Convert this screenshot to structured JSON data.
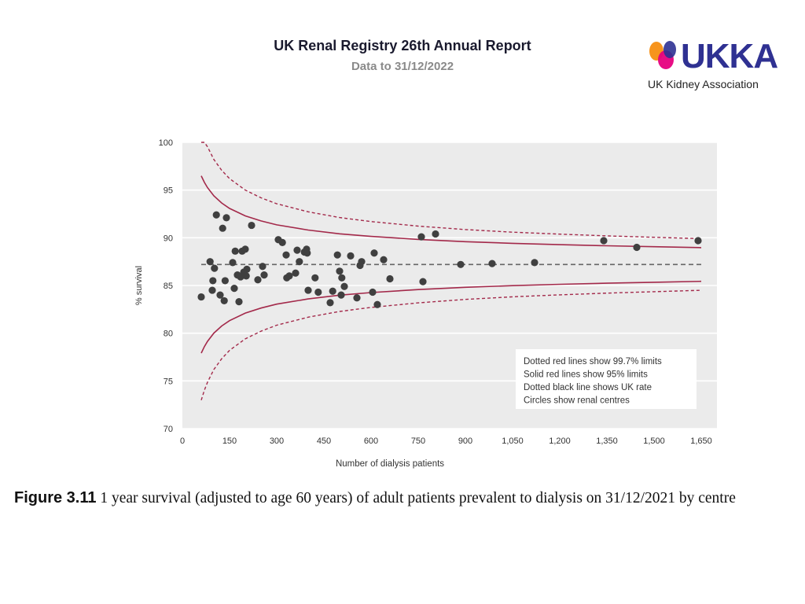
{
  "header": {
    "title": "UK Renal Registry 26th Annual Report",
    "subtitle": "Data to 31/12/2022"
  },
  "logo": {
    "wordmark": "UKKA",
    "tagline": "UK Kidney Association",
    "colors": [
      "#f7941d",
      "#e6007e",
      "#2e3192"
    ]
  },
  "caption": {
    "figure_label": "Figure 3.11",
    "text": "1 year survival (adjusted to age 60 years) of adult patients prevalent to dialysis on 31/12/2021 by centre"
  },
  "chart_data": {
    "type": "scatter",
    "title": "",
    "xlabel": "Number  of dialysis patients",
    "ylabel": "% survival",
    "xlim": [
      0,
      1700
    ],
    "ylim": [
      70,
      100
    ],
    "xticks": [
      0,
      150,
      300,
      450,
      600,
      750,
      900,
      1050,
      1200,
      1350,
      1500,
      1650
    ],
    "xtick_labels": [
      "0",
      "150",
      "300",
      "450",
      "600",
      "750",
      "900",
      "1,050",
      "1,200",
      "1,350",
      "1,500",
      "1,650"
    ],
    "yticks": [
      70,
      75,
      80,
      85,
      90,
      95,
      100
    ],
    "grid": true,
    "colors": {
      "points": "#404040",
      "limits": "#a3294a",
      "uk_rate": "#666666",
      "plot_bg": "#ebebeb"
    },
    "uk_rate": 87.2,
    "limit_x": [
      60,
      70,
      80,
      100,
      125,
      150,
      200,
      250,
      300,
      400,
      500,
      600,
      750,
      900,
      1050,
      1200,
      1350,
      1500,
      1650
    ],
    "limit_sigma_at": [
      4.74,
      4.39,
      4.11,
      3.67,
      3.29,
      3.0,
      2.6,
      2.33,
      2.12,
      1.84,
      1.64,
      1.5,
      1.34,
      1.22,
      1.13,
      1.06,
      1.0,
      0.95,
      0.9
    ],
    "legend": {
      "position": "lower-right",
      "entries": [
        "Dotted red lines show 99.7% limits",
        "Solid red lines show 95% limits",
        "Dotted black line shows UK rate",
        "Circles show renal centres"
      ]
    },
    "points": [
      [
        60,
        83.8
      ],
      [
        88,
        87.5
      ],
      [
        95,
        84.5
      ],
      [
        97,
        85.5
      ],
      [
        102,
        86.8
      ],
      [
        108,
        92.4
      ],
      [
        120,
        84.0
      ],
      [
        128,
        91.0
      ],
      [
        133,
        83.4
      ],
      [
        136,
        85.5
      ],
      [
        140,
        92.1
      ],
      [
        160,
        87.4
      ],
      [
        165,
        84.7
      ],
      [
        168,
        88.6
      ],
      [
        175,
        86.1
      ],
      [
        180,
        83.3
      ],
      [
        185,
        85.9
      ],
      [
        190,
        88.6
      ],
      [
        195,
        86.4
      ],
      [
        200,
        88.8
      ],
      [
        203,
        86.0
      ],
      [
        205,
        86.7
      ],
      [
        220,
        91.3
      ],
      [
        240,
        85.6
      ],
      [
        255,
        87.0
      ],
      [
        260,
        86.1
      ],
      [
        305,
        89.8
      ],
      [
        318,
        89.5
      ],
      [
        330,
        88.2
      ],
      [
        332,
        85.8
      ],
      [
        340,
        86.0
      ],
      [
        360,
        86.3
      ],
      [
        365,
        88.7
      ],
      [
        372,
        87.5
      ],
      [
        388,
        88.5
      ],
      [
        395,
        88.8
      ],
      [
        397,
        88.4
      ],
      [
        400,
        84.5
      ],
      [
        422,
        85.8
      ],
      [
        432,
        84.3
      ],
      [
        470,
        83.2
      ],
      [
        478,
        84.4
      ],
      [
        493,
        88.2
      ],
      [
        500,
        86.5
      ],
      [
        505,
        84.0
      ],
      [
        507,
        85.8
      ],
      [
        515,
        84.9
      ],
      [
        535,
        88.1
      ],
      [
        555,
        83.7
      ],
      [
        565,
        87.1
      ],
      [
        570,
        87.5
      ],
      [
        605,
        84.3
      ],
      [
        610,
        88.4
      ],
      [
        620,
        83.0
      ],
      [
        640,
        87.7
      ],
      [
        660,
        85.7
      ],
      [
        760,
        90.1
      ],
      [
        765,
        85.4
      ],
      [
        805,
        90.4
      ],
      [
        885,
        87.2
      ],
      [
        985,
        87.3
      ],
      [
        1120,
        87.4
      ],
      [
        1340,
        89.7
      ],
      [
        1445,
        89.0
      ],
      [
        1640,
        89.7
      ]
    ]
  }
}
